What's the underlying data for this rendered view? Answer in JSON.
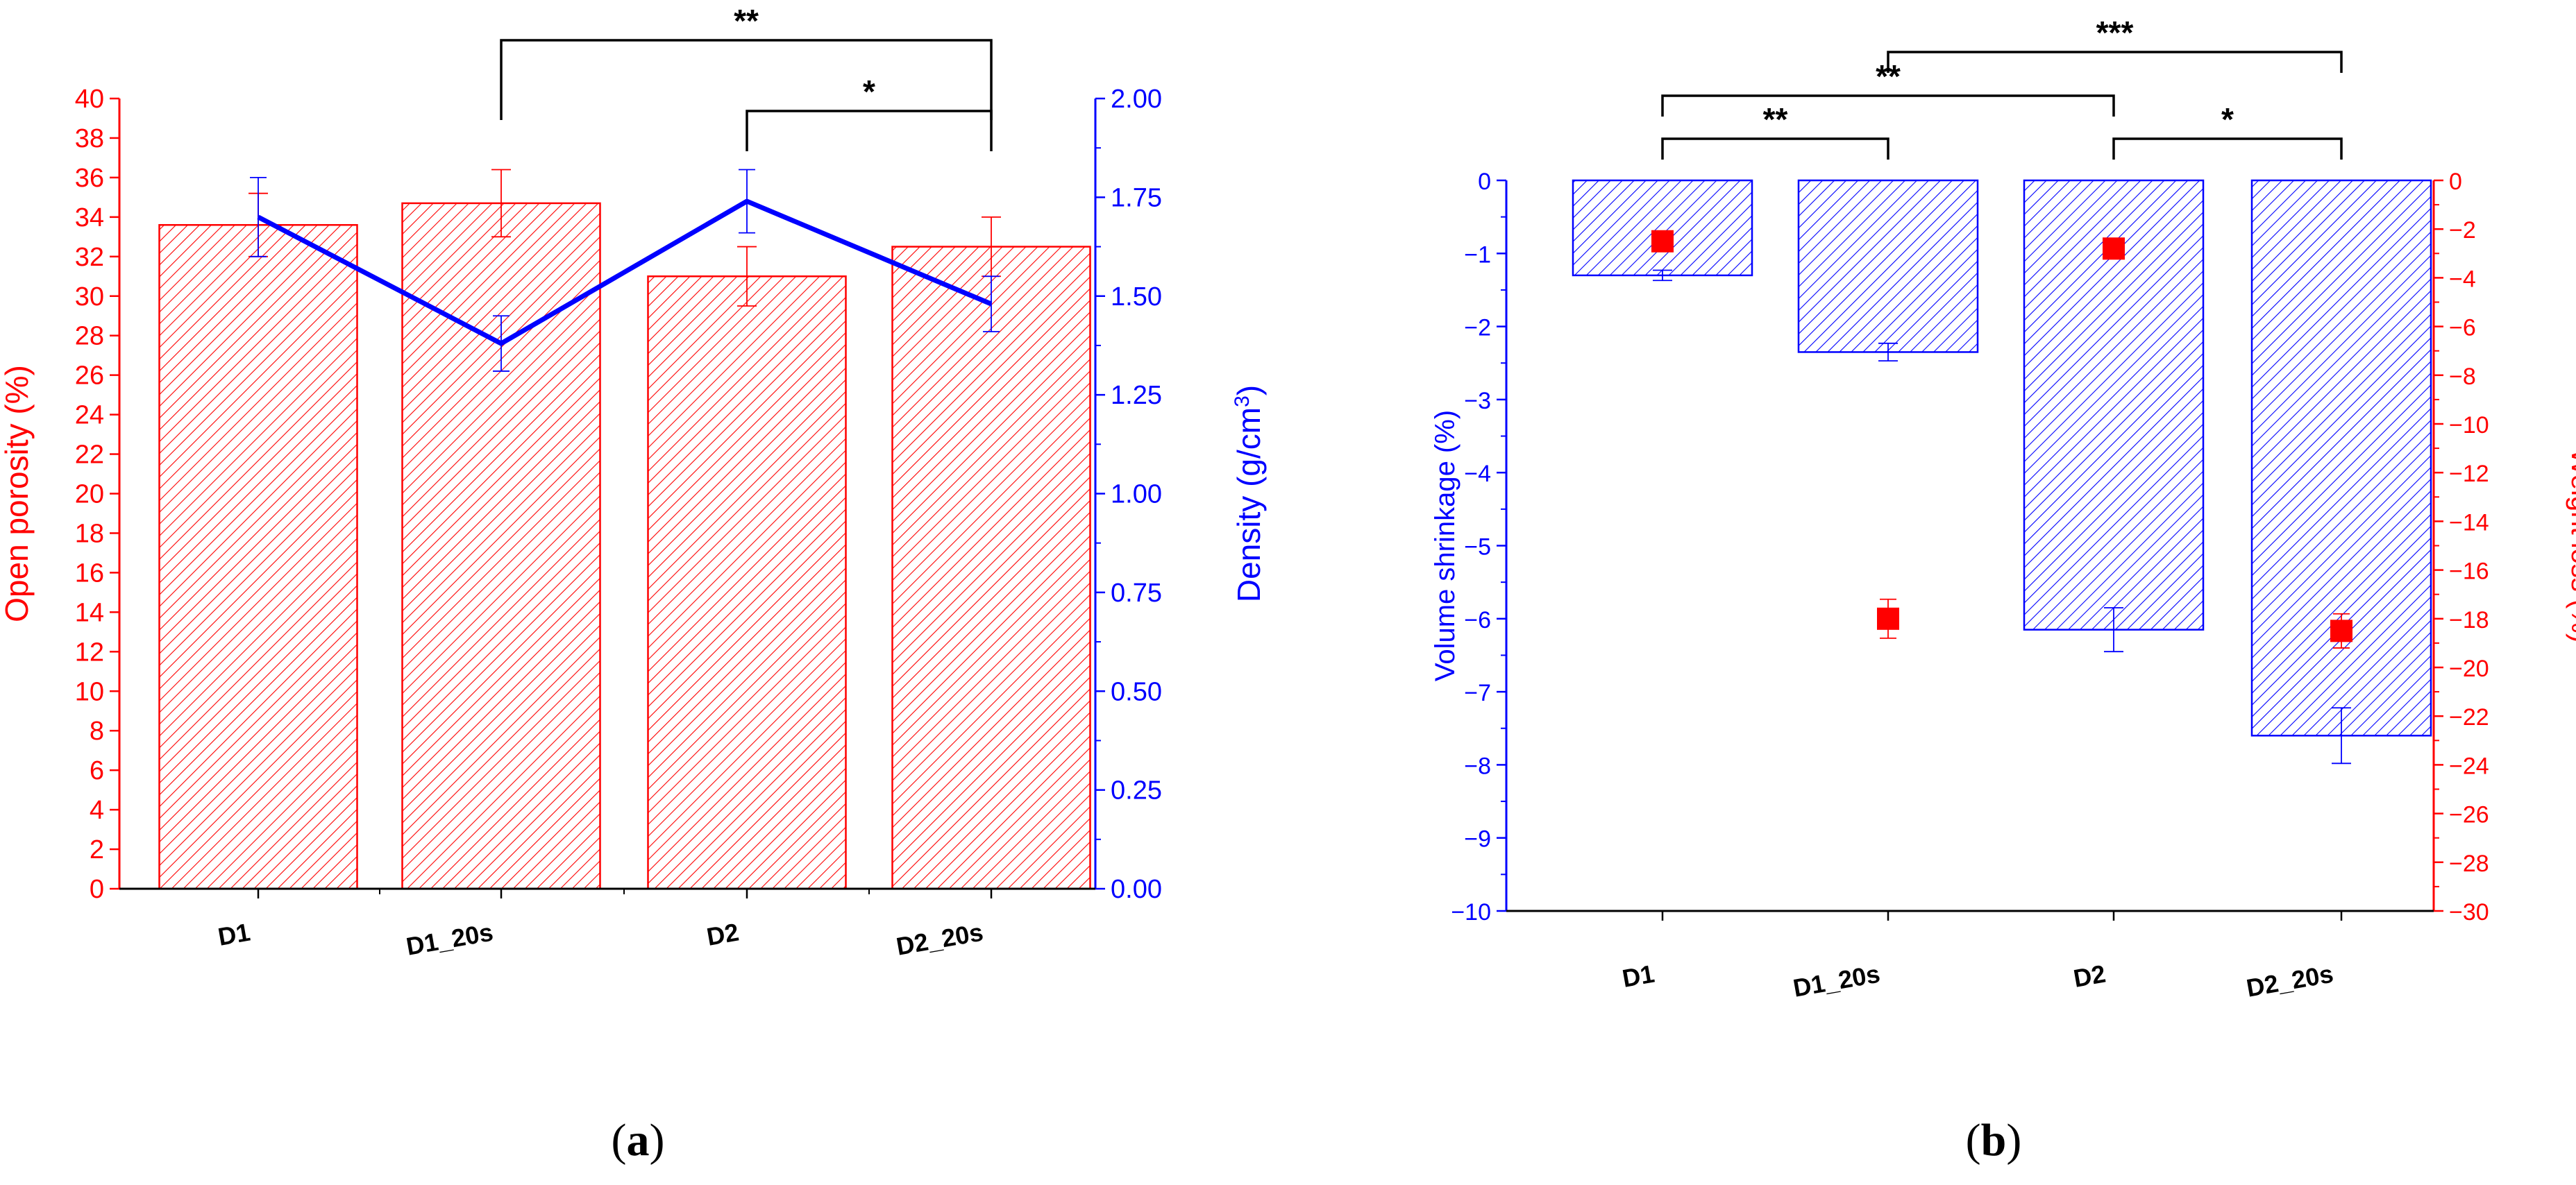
{
  "panels": [
    {
      "label_open": "(",
      "label_letter": "a",
      "label_close": ")"
    },
    {
      "label_open": "(",
      "label_letter": "b",
      "label_close": ")"
    }
  ],
  "chart_data": [
    {
      "type": "bar",
      "categories": [
        "D1",
        "D1_20s",
        "D2",
        "D2_20s"
      ],
      "bar_color": "#ff0000",
      "line_color": "#0000ff",
      "left_axis": {
        "label": "Open porosity (%)",
        "ylim": [
          0,
          40
        ],
        "ticks": [
          0,
          2,
          4,
          6,
          8,
          10,
          12,
          14,
          16,
          18,
          20,
          22,
          24,
          26,
          28,
          30,
          32,
          34,
          36,
          38,
          40
        ],
        "tick_labels": [
          "0",
          "2",
          "4",
          "6",
          "8",
          "10",
          "12",
          "14",
          "16",
          "18",
          "20",
          "22",
          "24",
          "26",
          "28",
          "30",
          "32",
          "34",
          "36",
          "38",
          "40"
        ]
      },
      "right_axis": {
        "label": "Density (g/cm",
        "label_sup": "3",
        "label_close": ")",
        "ylim": [
          0,
          2
        ],
        "ticks": [
          0,
          0.25,
          0.5,
          0.75,
          1.0,
          1.25,
          1.5,
          1.75,
          2.0
        ],
        "tick_labels": [
          "0.00",
          "0.25",
          "0.50",
          "0.75",
          "1.00",
          "1.25",
          "1.50",
          "1.75",
          "2.00"
        ]
      },
      "series": [
        {
          "name": "Open porosity",
          "kind": "bar",
          "axis": "left",
          "values": [
            33.6,
            34.7,
            31.0,
            32.5
          ],
          "errors": [
            1.6,
            1.7,
            1.5,
            1.5
          ]
        },
        {
          "name": "Density",
          "kind": "line",
          "axis": "right",
          "values": [
            1.7,
            1.38,
            1.74,
            1.48
          ],
          "errors": [
            0.1,
            0.07,
            0.08,
            0.07
          ]
        }
      ],
      "significance": [
        {
          "from": 1,
          "to": 3,
          "label": "**"
        },
        {
          "from": 2,
          "to": 3,
          "label": "*"
        }
      ]
    },
    {
      "type": "bar",
      "categories": [
        "D1",
        "D1_20s",
        "D2",
        "D2_20s"
      ],
      "bar_color": "#0000ff",
      "marker_color": "#ff0000",
      "left_axis": {
        "label": "Volume shrinkage (%)",
        "ylim": [
          -10,
          0
        ],
        "ticks": [
          0,
          -1,
          -2,
          -3,
          -4,
          -5,
          -6,
          -7,
          -8,
          -9,
          -10
        ],
        "tick_labels": [
          "0",
          "−1",
          "−2",
          "−3",
          "−4",
          "−5",
          "−6",
          "−7",
          "−8",
          "−9",
          "−10"
        ]
      },
      "right_axis": {
        "label": "Weight loss (%)",
        "ylim": [
          -30,
          0
        ],
        "ticks": [
          0,
          -2,
          -4,
          -6,
          -8,
          -10,
          -12,
          -14,
          -16,
          -18,
          -20,
          -22,
          -24,
          -26,
          -28,
          -30
        ],
        "tick_labels": [
          "0",
          "−2",
          "−4",
          "−6",
          "−8",
          "−10",
          "−12",
          "−14",
          "−16",
          "−18",
          "−20",
          "−22",
          "−24",
          "−26",
          "−28",
          "−30"
        ]
      },
      "series": [
        {
          "name": "Volume shrinkage",
          "kind": "bar",
          "axis": "left",
          "values": [
            -1.3,
            -2.35,
            -6.15,
            -7.6
          ],
          "errors": [
            0.07,
            0.12,
            0.3,
            0.38
          ]
        },
        {
          "name": "Weight loss",
          "kind": "scatter",
          "axis": "right",
          "values": [
            -2.5,
            -18.0,
            -2.8,
            -18.5
          ],
          "errors": [
            0.4,
            0.8,
            0.3,
            0.7
          ]
        }
      ],
      "significance": [
        {
          "from": 0,
          "to": 1,
          "label": "**"
        },
        {
          "from": 0,
          "to": 2,
          "label": "**"
        },
        {
          "from": 1,
          "to": 3,
          "label": "***"
        },
        {
          "from": 2,
          "to": 3,
          "label": "*"
        }
      ]
    }
  ]
}
